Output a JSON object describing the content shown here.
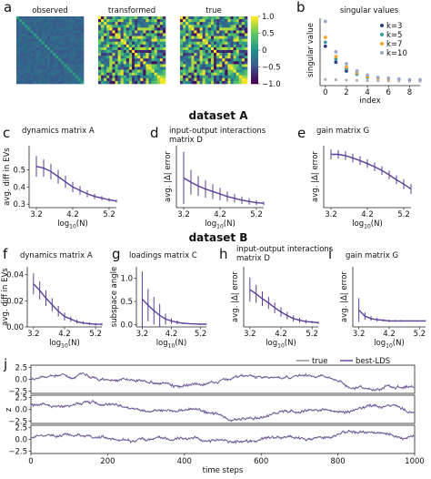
{
  "figure": {
    "heading_a": "dataset A",
    "heading_b": "dataset B"
  },
  "colors": {
    "curve": "#5b3f99",
    "true_line": "#8a8a8a",
    "k3": "#2a3d80",
    "k5": "#3c9aa0",
    "k7": "#f3a52b",
    "k10": "#9aa6c8",
    "svd": "#b0b0b0"
  },
  "chart_data": [
    {
      "id": "a",
      "panel_label": "a",
      "type": "heatmap",
      "matrices": [
        "observed",
        "transformed",
        "true"
      ],
      "colorbar_ticks": [
        "1.0",
        "0.5",
        "0",
        "−0.5",
        "−1.0"
      ],
      "vmin": -1.0,
      "vmax": 1.0,
      "size": 24
    },
    {
      "id": "b",
      "panel_label": "b",
      "type": "scatter",
      "title": "singular values",
      "xlabel": "index",
      "ylabel": "singular value",
      "xticks": [
        "0",
        "2",
        "4",
        "6",
        "8"
      ],
      "xlim": [
        -0.5,
        9
      ],
      "legend_position": "right",
      "series": [
        {
          "name": "k=3",
          "color_key": "k3",
          "x": [
            0,
            1,
            2
          ],
          "y": [
            4.7,
            2.7,
            1.6
          ]
        },
        {
          "name": "k=5",
          "color_key": "k5",
          "x": [
            0,
            1,
            2,
            3,
            4
          ],
          "y": [
            5.2,
            3.1,
            1.9,
            1.2,
            0.8
          ]
        },
        {
          "name": "k=7",
          "color_key": "k7",
          "x": [
            0,
            1,
            2,
            3,
            4,
            5,
            6
          ],
          "y": [
            5.8,
            3.4,
            2.1,
            1.4,
            0.9,
            0.7,
            0.6
          ]
        },
        {
          "name": "k=10",
          "color_key": "k10",
          "x": [
            0,
            1,
            2,
            3,
            4,
            5,
            6,
            7,
            8,
            9
          ],
          "y": [
            7.8,
            4.0,
            2.5,
            1.6,
            1.1,
            0.8,
            0.7,
            0.6,
            0.5,
            0.5
          ]
        }
      ]
    },
    {
      "id": "c",
      "panel_label": "c",
      "type": "line",
      "title": "dynamics matrix A",
      "title_lines": [
        "dynamics matrix A"
      ],
      "ylabel": "avg. diff in EVs",
      "xlabel": "log10(N)",
      "xlabel_main": "log",
      "xlabel_sub": "10",
      "xlabel_tail": "(N)",
      "xticks": [
        3.2,
        4.2,
        5.2
      ],
      "xtick_labels": [
        "3.2",
        "4.2",
        "5.2"
      ],
      "yticks": [
        0.3,
        0.4,
        0.5
      ],
      "ytick_labels": [
        "0.3",
        "0.4",
        "0.5"
      ],
      "xlim": [
        3.0,
        5.4
      ],
      "ylim": [
        0.28,
        0.64
      ],
      "x": [
        3.2,
        3.4,
        3.6,
        3.8,
        4.0,
        4.2,
        4.4,
        4.6,
        4.8,
        5.0,
        5.2,
        5.4
      ],
      "y": [
        0.52,
        0.51,
        0.49,
        0.46,
        0.43,
        0.4,
        0.38,
        0.36,
        0.345,
        0.335,
        0.325,
        0.318
      ],
      "err": [
        0.06,
        0.05,
        0.045,
        0.04,
        0.035,
        0.03,
        0.025,
        0.02,
        0.015,
        0.012,
        0.01,
        0.008
      ]
    },
    {
      "id": "d",
      "panel_label": "d",
      "type": "line",
      "title": "input-output interactions matrix D",
      "title_lines": [
        "input-output interactions",
        "matrix D"
      ],
      "ylabel": "avg. |Δ| error",
      "xlabel": "log10(N)",
      "xlabel_main": "log",
      "xlabel_sub": "10",
      "xlabel_tail": "(N)",
      "xticks": [
        3.2,
        4.2,
        5.2
      ],
      "xtick_labels": [
        "3.2",
        "4.2",
        "5.2"
      ],
      "yticks": [],
      "ytick_labels": [],
      "xlim": [
        3.0,
        5.4
      ],
      "ylim": [
        0.0,
        1.0
      ],
      "x": [
        3.2,
        3.4,
        3.6,
        3.8,
        4.0,
        4.2,
        4.4,
        4.6,
        4.8,
        5.0,
        5.2,
        5.4
      ],
      "y": [
        0.48,
        0.41,
        0.35,
        0.3,
        0.26,
        0.22,
        0.18,
        0.15,
        0.12,
        0.1,
        0.08,
        0.07
      ],
      "err": [
        0.42,
        0.2,
        0.16,
        0.14,
        0.12,
        0.1,
        0.08,
        0.07,
        0.06,
        0.05,
        0.04,
        0.03
      ]
    },
    {
      "id": "e",
      "panel_label": "e",
      "type": "line",
      "title": "gain matrix G",
      "title_lines": [
        "gain matrix G"
      ],
      "ylabel": "avg. |Δ| error",
      "xlabel": "log10(N)",
      "xlabel_main": "log",
      "xlabel_sub": "10",
      "xlabel_tail": "(N)",
      "xticks": [
        3.2,
        4.2,
        5.2
      ],
      "xtick_labels": [
        "3.2",
        "4.2",
        "5.2"
      ],
      "yticks": [],
      "ytick_labels": [],
      "xlim": [
        3.0,
        5.4
      ],
      "ylim": [
        0.0,
        1.0
      ],
      "x": [
        3.2,
        3.4,
        3.6,
        3.8,
        4.0,
        4.2,
        4.4,
        4.6,
        4.8,
        5.0,
        5.2,
        5.4
      ],
      "y": [
        0.86,
        0.86,
        0.84,
        0.8,
        0.76,
        0.71,
        0.66,
        0.6,
        0.53,
        0.45,
        0.38,
        0.3
      ],
      "err": [
        0.08,
        0.07,
        0.07,
        0.07,
        0.07,
        0.07,
        0.07,
        0.07,
        0.07,
        0.07,
        0.08,
        0.08
      ]
    },
    {
      "id": "f",
      "panel_label": "f",
      "type": "line",
      "title": "dynamics matrix A",
      "title_lines": [
        "dynamics matrix A"
      ],
      "ylabel": "avg. diff in EVs",
      "xlabel": "log10(N)",
      "xlabel_main": "log",
      "xlabel_sub": "10",
      "xlabel_tail": "(N)",
      "xticks": [
        3.2,
        4.2,
        5.2
      ],
      "xtick_labels": [
        "3.2",
        "4.2",
        "5.2"
      ],
      "yticks": [
        0.0,
        0.02,
        0.04
      ],
      "ytick_labels": [
        "0.00",
        "0.02",
        "0.04"
      ],
      "xlim": [
        3.0,
        5.4
      ],
      "ylim": [
        0.0,
        0.046
      ],
      "x": [
        3.2,
        3.4,
        3.6,
        3.8,
        4.0,
        4.2,
        4.4,
        4.6,
        4.8,
        5.0,
        5.2,
        5.4
      ],
      "y": [
        0.033,
        0.028,
        0.022,
        0.017,
        0.012,
        0.008,
        0.006,
        0.004,
        0.003,
        0.0025,
        0.002,
        0.002
      ],
      "err": [
        0.008,
        0.007,
        0.006,
        0.005,
        0.004,
        0.003,
        0.002,
        0.0015,
        0.001,
        0.001,
        0.001,
        0.001
      ]
    },
    {
      "id": "g",
      "panel_label": "g",
      "type": "line",
      "title": "loadings matrix C",
      "title_lines": [
        "loadings matrix C"
      ],
      "ylabel": "subspace angle",
      "xlabel": "log10(N)",
      "xlabel_main": "log",
      "xlabel_sub": "10",
      "xlabel_tail": "(N)",
      "xticks": [
        3.2,
        4.2,
        5.2
      ],
      "xtick_labels": [
        "3.2",
        "4.2",
        "5.2"
      ],
      "yticks": [
        0.0,
        0.5,
        1.0
      ],
      "ytick_labels": [
        "0.0",
        "0.5",
        "1.0"
      ],
      "xlim": [
        3.0,
        5.4
      ],
      "ylim": [
        -0.05,
        1.25
      ],
      "x": [
        3.2,
        3.4,
        3.6,
        3.8,
        4.0,
        4.2,
        4.4,
        4.6,
        4.8,
        5.0,
        5.2,
        5.4
      ],
      "y": [
        0.55,
        0.42,
        0.3,
        0.2,
        0.12,
        0.08,
        0.05,
        0.03,
        0.02,
        0.015,
        0.01,
        0.01
      ],
      "err": [
        0.6,
        0.35,
        0.3,
        0.25,
        0.12,
        0.06,
        0.04,
        0.02,
        0.01,
        0.01,
        0.005,
        0.005
      ]
    },
    {
      "id": "h",
      "panel_label": "h",
      "type": "line",
      "title": "input-output interactions matrix D",
      "title_lines": [
        "input-output interactions",
        "matrix D"
      ],
      "ylabel": "avg. |Δ| error",
      "xlabel": "log10(N)",
      "xlabel_main": "log",
      "xlabel_sub": "10",
      "xlabel_tail": "(N)",
      "xticks": [
        3.2,
        4.2,
        5.2
      ],
      "xtick_labels": [
        "3.2",
        "4.2",
        "5.2"
      ],
      "yticks": [],
      "ytick_labels": [],
      "xlim": [
        3.0,
        5.4
      ],
      "ylim": [
        0.0,
        1.0
      ],
      "x": [
        3.2,
        3.4,
        3.6,
        3.8,
        4.0,
        4.2,
        4.4,
        4.6,
        4.8,
        5.0,
        5.2,
        5.4
      ],
      "y": [
        0.62,
        0.55,
        0.47,
        0.4,
        0.32,
        0.25,
        0.19,
        0.14,
        0.11,
        0.09,
        0.08,
        0.07
      ],
      "err": [
        0.2,
        0.15,
        0.12,
        0.1,
        0.09,
        0.08,
        0.06,
        0.05,
        0.04,
        0.03,
        0.02,
        0.02
      ]
    },
    {
      "id": "i",
      "panel_label": "i",
      "type": "line",
      "title": "gain matrix G",
      "title_lines": [
        "gain matrix G"
      ],
      "ylabel": "avg. |Δ| error",
      "xlabel": "log10(N)",
      "xlabel_main": "log",
      "xlabel_sub": "10",
      "xlabel_tail": "(N)",
      "xticks": [
        3.2,
        4.2,
        5.2
      ],
      "xtick_labels": [
        "3.2",
        "4.2",
        "5.2"
      ],
      "yticks": [],
      "ytick_labels": [],
      "xlim": [
        3.0,
        5.4
      ],
      "ylim": [
        0.0,
        1.0
      ],
      "x": [
        3.2,
        3.4,
        3.6,
        3.8,
        4.0,
        4.2,
        4.4,
        4.6,
        4.8,
        5.0,
        5.2,
        5.4
      ],
      "y": [
        0.28,
        0.18,
        0.14,
        0.12,
        0.11,
        0.1,
        0.1,
        0.1,
        0.1,
        0.1,
        0.1,
        0.1
      ],
      "err": [
        0.2,
        0.06,
        0.04,
        0.03,
        0.02,
        0.02,
        0.015,
        0.015,
        0.01,
        0.01,
        0.01,
        0.01
      ]
    },
    {
      "id": "j",
      "panel_label": "j",
      "type": "line",
      "ylabel": "z",
      "xlabel": "time steps",
      "xticks": [
        0,
        200,
        400,
        600,
        800,
        1000
      ],
      "xtick_labels": [
        "0",
        "200",
        "400",
        "600",
        "800",
        "1000"
      ],
      "xlim": [
        0,
        1000
      ],
      "yticks": [
        2.5,
        0.0,
        -2.5
      ],
      "ytick_labels": [
        "2.5",
        "0.0",
        "−2.5"
      ],
      "ylim": [
        -3.0,
        3.0
      ],
      "legend_position": "top-right",
      "series": [
        {
          "name": "true",
          "color_key": "true_line"
        },
        {
          "name": "best-LDS",
          "color_key": "curve"
        }
      ],
      "n_points": 1000,
      "subplots": 3
    }
  ]
}
